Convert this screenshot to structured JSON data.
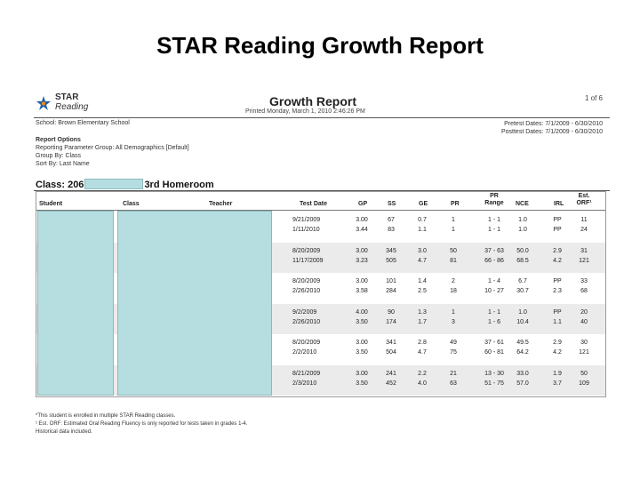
{
  "slide": {
    "title": "STAR Reading Growth Report"
  },
  "report": {
    "logo_line1": "STAR",
    "logo_line2": "Reading",
    "title": "Growth Report",
    "printed": "Printed Monday, March 1, 2010 2:46:26 PM",
    "page": "1 of 6",
    "school": "School: Brown Elementary School",
    "pretest_dates": "Pretest Dates: 7/1/2009 - 6/30/2010",
    "posttest_dates": "Posttest Dates: 7/1/2009 - 6/30/2010",
    "options": {
      "heading": "Report Options",
      "lines": [
        "Reporting Parameter Group: All Demographics [Default]",
        "Group By: Class",
        "Sort By: Last Name"
      ]
    },
    "class_prefix": "Class: 206",
    "class_suffix": "3rd Homeroom",
    "columns": {
      "student": "Student",
      "class": "Class",
      "teacher": "Teacher",
      "test_date": "Test Date",
      "gp": "GP",
      "ss": "SS",
      "ge": "GE",
      "pr": "PR",
      "pr_range_1": "PR",
      "pr_range_2": "Range",
      "nce": "NCE",
      "irl": "IRL",
      "orf_1": "Est.",
      "orf_2": "ORF¹"
    },
    "rows": [
      {
        "date": [
          "9/21/2009",
          "1/11/2010"
        ],
        "gp": [
          "3.00",
          "3.44"
        ],
        "ss": [
          "67",
          "83"
        ],
        "ge": [
          "0.7",
          "1.1"
        ],
        "pr": [
          "1",
          "1"
        ],
        "range": [
          "1 - 1",
          "1 - 1"
        ],
        "nce": [
          "1.0",
          "1.0"
        ],
        "irl": [
          "PP",
          "PP"
        ],
        "orf": [
          "11",
          "24"
        ]
      },
      {
        "date": [
          "8/20/2009",
          "11/17/2009"
        ],
        "gp": [
          "3.00",
          "3.23"
        ],
        "ss": [
          "345",
          "505"
        ],
        "ge": [
          "3.0",
          "4.7"
        ],
        "pr": [
          "50",
          "81"
        ],
        "range": [
          "37 - 63",
          "66 - 86"
        ],
        "nce": [
          "50.0",
          "68.5"
        ],
        "irl": [
          "2.9",
          "4.2"
        ],
        "orf": [
          "31",
          "121"
        ]
      },
      {
        "date": [
          "8/20/2009",
          "2/26/2010"
        ],
        "gp": [
          "3.00",
          "3.58"
        ],
        "ss": [
          "101",
          "284"
        ],
        "ge": [
          "1.4",
          "2.5"
        ],
        "pr": [
          "2",
          "18"
        ],
        "range": [
          "1 - 4",
          "10 - 27"
        ],
        "nce": [
          "6.7",
          "30.7"
        ],
        "irl": [
          "PP",
          "2.3"
        ],
        "orf": [
          "33",
          "68"
        ]
      },
      {
        "date": [
          "9/2/2009",
          "2/26/2010"
        ],
        "gp": [
          "4.00",
          "3.50"
        ],
        "ss": [
          "90",
          "174"
        ],
        "ge": [
          "1.3",
          "1.7"
        ],
        "pr": [
          "1",
          "3"
        ],
        "range": [
          "1 - 1",
          "1 - 6"
        ],
        "nce": [
          "1.0",
          "10.4"
        ],
        "irl": [
          "PP",
          "1.1"
        ],
        "orf": [
          "20",
          "40"
        ]
      },
      {
        "date": [
          "8/20/2009",
          "2/2/2010"
        ],
        "gp": [
          "3.00",
          "3.50"
        ],
        "ss": [
          "341",
          "504"
        ],
        "ge": [
          "2.8",
          "4.7"
        ],
        "pr": [
          "49",
          "75"
        ],
        "range": [
          "37 - 61",
          "60 - 81"
        ],
        "nce": [
          "49.5",
          "64.2"
        ],
        "irl": [
          "2.9",
          "4.2"
        ],
        "orf": [
          "30",
          "121"
        ]
      },
      {
        "date": [
          "8/21/2009",
          "2/3/2010"
        ],
        "gp": [
          "3.00",
          "3.50"
        ],
        "ss": [
          "241",
          "452"
        ],
        "ge": [
          "2.2",
          "4.0"
        ],
        "pr": [
          "21",
          "63"
        ],
        "range": [
          "13 - 30",
          "51 - 75"
        ],
        "nce": [
          "33.0",
          "57.0"
        ],
        "irl": [
          "1.9",
          "3.7"
        ],
        "orf": [
          "50",
          "109"
        ]
      }
    ],
    "footnotes": [
      "*This student is enrolled in multiple STAR Reading classes.",
      "¹ Est. ORF: Estimated Oral Reading Fluency is only reported for tests taken in grades 1-4.",
      "Historical data included."
    ]
  },
  "colors": {
    "redaction": "#b6dde0",
    "logo_blue": "#1f5fa8",
    "logo_orange": "#e8871e"
  }
}
